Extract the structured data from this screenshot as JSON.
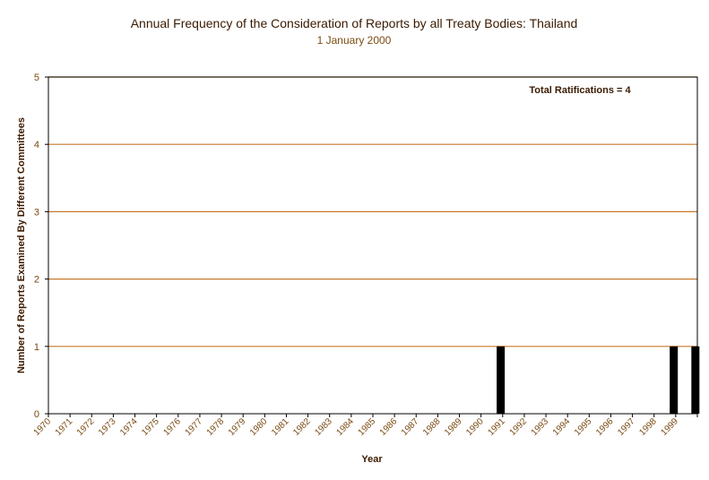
{
  "chart_data": {
    "type": "bar",
    "title": "Annual Frequency of the Consideration of Reports by all Treaty Bodies: Thailand",
    "subtitle": "1 January 2000",
    "xlabel": "Year",
    "ylabel": "Number of Reports Examined By Different Committees",
    "annotation": "Total Ratifications = 4",
    "categories": [
      "1970",
      "1971",
      "1972",
      "1973",
      "1974",
      "1975",
      "1976",
      "1977",
      "1978",
      "1979",
      "1980",
      "1981",
      "1982",
      "1983",
      "1984",
      "1985",
      "1986",
      "1987",
      "1988",
      "1989",
      "1990",
      "1991",
      "1992",
      "1993",
      "1994",
      "1995",
      "1996",
      "1997",
      "1998",
      "1999"
    ],
    "values": [
      0,
      0,
      0,
      0,
      0,
      0,
      0,
      0,
      0,
      0,
      0,
      0,
      0,
      0,
      0,
      0,
      0,
      0,
      0,
      0,
      1,
      0,
      0,
      0,
      0,
      0,
      0,
      0,
      1,
      1
    ],
    "ylim": [
      0,
      5
    ],
    "yticks": [
      "0",
      "1",
      "2",
      "3",
      "4",
      "5"
    ],
    "grid": true,
    "colors": {
      "bar": "#000000",
      "gridline": "#c8782a",
      "axis": "#000000",
      "text_dark": "#3a1a00",
      "text_tick": "#7a4a10"
    }
  }
}
